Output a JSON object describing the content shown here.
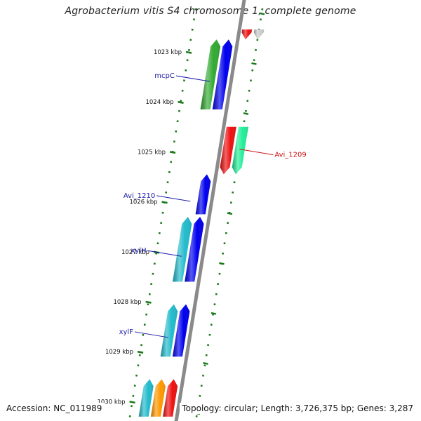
{
  "title": "Agrobacterium vitis S4 chromosome 1, complete genome",
  "accession": "Accession: NC_011989",
  "summary": "Topology: circular; Length: 3,726,375 bp; Genes: 3,287",
  "colors": {
    "axis": "#8a8a8a",
    "tick": "#1a7a1a",
    "label_plus": "#1a1aa8",
    "label_minus": "#cc1111"
  },
  "scale_ticks": [
    {
      "label": "1023 kbp",
      "kbp": 1023
    },
    {
      "label": "1024 kbp",
      "kbp": 1024
    },
    {
      "label": "1025 kbp",
      "kbp": 1025
    },
    {
      "label": "1026 kbp",
      "kbp": 1026
    },
    {
      "label": "1027 kbp",
      "kbp": 1027
    },
    {
      "label": "1028 kbp",
      "kbp": 1028
    },
    {
      "label": "1029 kbp",
      "kbp": 1029
    },
    {
      "label": "1030 kbp",
      "kbp": 1030
    }
  ],
  "genes": [
    {
      "name": "",
      "strand": "-",
      "start_kbp": 1022.55,
      "end_kbp": 1022.75,
      "color": "#ee1111"
    },
    {
      "name": "",
      "strand": "-",
      "start_kbp": 1022.55,
      "end_kbp": 1022.75,
      "color": "#cccccc"
    },
    {
      "name": "mcpC",
      "strand": "+",
      "start_kbp": 1022.75,
      "end_kbp": 1024.15,
      "color": "#0000ee"
    },
    {
      "name": "",
      "strand": "+",
      "start_kbp": 1022.75,
      "end_kbp": 1024.15,
      "color": "#33aa33"
    },
    {
      "name": "Avi_1209",
      "strand": "-",
      "start_kbp": 1024.5,
      "end_kbp": 1025.45,
      "color": "#ee1111"
    },
    {
      "name": "",
      "strand": "-",
      "start_kbp": 1024.5,
      "end_kbp": 1025.45,
      "color": "#22ee99"
    },
    {
      "name": "Avi_1210",
      "strand": "+",
      "start_kbp": 1025.45,
      "end_kbp": 1026.25,
      "color": "#0000ee"
    },
    {
      "name": "xylH",
      "strand": "+",
      "start_kbp": 1026.3,
      "end_kbp": 1027.6,
      "color": "#0000ee"
    },
    {
      "name": "",
      "strand": "+",
      "start_kbp": 1026.3,
      "end_kbp": 1027.6,
      "color": "#22bbcc"
    },
    {
      "name": "xylF",
      "strand": "+",
      "start_kbp": 1028.05,
      "end_kbp": 1029.1,
      "color": "#0000ee"
    },
    {
      "name": "",
      "strand": "+",
      "start_kbp": 1028.05,
      "end_kbp": 1029.1,
      "color": "#22bbcc"
    },
    {
      "name": "",
      "strand": "+",
      "start_kbp": 1029.55,
      "end_kbp": 1030.3,
      "color": "#ee1111"
    },
    {
      "name": "",
      "strand": "+",
      "start_kbp": 1029.55,
      "end_kbp": 1030.3,
      "color": "#ff9900"
    },
    {
      "name": "",
      "strand": "+",
      "start_kbp": 1029.55,
      "end_kbp": 1030.3,
      "color": "#22bbcc"
    }
  ]
}
